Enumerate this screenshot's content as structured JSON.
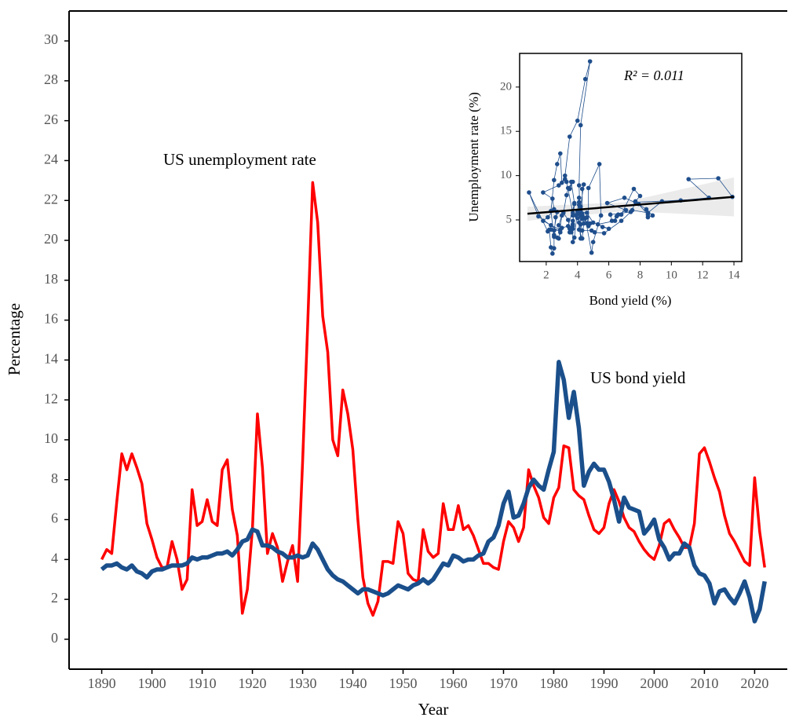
{
  "chart_data": [
    {
      "type": "line",
      "xlabel": "Year",
      "ylabel": "Percentage",
      "x": [
        1890,
        1891,
        1892,
        1893,
        1894,
        1895,
        1896,
        1897,
        1898,
        1899,
        1900,
        1901,
        1902,
        1903,
        1904,
        1905,
        1906,
        1907,
        1908,
        1909,
        1910,
        1911,
        1912,
        1913,
        1914,
        1915,
        1916,
        1917,
        1918,
        1919,
        1920,
        1921,
        1922,
        1923,
        1924,
        1925,
        1926,
        1927,
        1928,
        1929,
        1930,
        1931,
        1932,
        1933,
        1934,
        1935,
        1936,
        1937,
        1938,
        1939,
        1940,
        1941,
        1942,
        1943,
        1944,
        1945,
        1946,
        1947,
        1948,
        1949,
        1950,
        1951,
        1952,
        1953,
        1954,
        1955,
        1956,
        1957,
        1958,
        1959,
        1960,
        1961,
        1962,
        1963,
        1964,
        1965,
        1966,
        1967,
        1968,
        1969,
        1970,
        1971,
        1972,
        1973,
        1974,
        1975,
        1976,
        1977,
        1978,
        1979,
        1980,
        1981,
        1982,
        1983,
        1984,
        1985,
        1986,
        1987,
        1988,
        1989,
        1990,
        1991,
        1992,
        1993,
        1994,
        1995,
        1996,
        1997,
        1998,
        1999,
        2000,
        2001,
        2002,
        2003,
        2004,
        2005,
        2006,
        2007,
        2008,
        2009,
        2010,
        2011,
        2012,
        2013,
        2014,
        2015,
        2016,
        2017,
        2018,
        2019,
        2020,
        2021,
        2022
      ],
      "series": [
        {
          "name": "US unemployment rate",
          "color": "#ff0000",
          "values": [
            4.0,
            4.5,
            4.3,
            6.9,
            9.3,
            8.5,
            9.3,
            8.6,
            7.8,
            5.8,
            5.0,
            4.1,
            3.6,
            3.6,
            4.9,
            4.0,
            2.5,
            3.0,
            7.5,
            5.7,
            5.9,
            7.0,
            5.9,
            5.7,
            8.5,
            9.0,
            6.5,
            5.2,
            1.3,
            2.5,
            5.5,
            11.3,
            8.6,
            4.3,
            5.3,
            4.6,
            2.9,
            3.9,
            4.7,
            2.9,
            8.9,
            15.7,
            22.9,
            20.9,
            16.2,
            14.4,
            10.0,
            9.2,
            12.5,
            11.3,
            9.5,
            6.0,
            3.1,
            1.8,
            1.2,
            1.9,
            3.9,
            3.9,
            3.8,
            5.9,
            5.3,
            3.3,
            3.0,
            2.9,
            5.5,
            4.4,
            4.1,
            4.3,
            6.8,
            5.5,
            5.5,
            6.7,
            5.5,
            5.7,
            5.2,
            4.5,
            3.8,
            3.8,
            3.6,
            3.5,
            4.9,
            5.9,
            5.6,
            4.9,
            5.6,
            8.5,
            7.7,
            7.1,
            6.1,
            5.8,
            7.1,
            7.6,
            9.7,
            9.6,
            7.5,
            7.2,
            7.0,
            6.2,
            5.5,
            5.3,
            5.6,
            6.8,
            7.5,
            6.9,
            6.1,
            5.6,
            5.4,
            4.9,
            4.5,
            4.2,
            4.0,
            4.7,
            5.8,
            6.0,
            5.5,
            5.1,
            4.6,
            4.6,
            5.8,
            9.3,
            9.6,
            8.9,
            8.1,
            7.4,
            6.2,
            5.3,
            4.9,
            4.4,
            3.9,
            3.7,
            8.1,
            5.4,
            3.6
          ]
        },
        {
          "name": "US bond yield",
          "color": "#1a4f8b",
          "values": [
            3.5,
            3.7,
            3.7,
            3.8,
            3.6,
            3.5,
            3.7,
            3.4,
            3.3,
            3.1,
            3.4,
            3.5,
            3.5,
            3.6,
            3.7,
            3.7,
            3.7,
            3.8,
            4.1,
            4.0,
            4.1,
            4.1,
            4.2,
            4.3,
            4.3,
            4.4,
            4.2,
            4.5,
            4.9,
            5.0,
            5.5,
            5.4,
            4.7,
            4.7,
            4.6,
            4.4,
            4.3,
            4.1,
            4.1,
            4.2,
            4.1,
            4.2,
            4.8,
            4.5,
            4.0,
            3.5,
            3.2,
            3.0,
            2.9,
            2.7,
            2.5,
            2.3,
            2.5,
            2.5,
            2.4,
            2.3,
            2.2,
            2.3,
            2.5,
            2.7,
            2.6,
            2.5,
            2.7,
            2.8,
            3.0,
            2.8,
            3.0,
            3.4,
            3.8,
            3.7,
            4.2,
            4.1,
            3.9,
            4.0,
            4.0,
            4.2,
            4.3,
            4.9,
            5.1,
            5.7,
            6.8,
            7.4,
            6.1,
            6.2,
            6.8,
            7.6,
            8.0,
            7.7,
            7.5,
            8.5,
            9.4,
            13.9,
            13.0,
            11.1,
            12.4,
            10.6,
            7.7,
            8.4,
            8.8,
            8.5,
            8.5,
            7.9,
            7.0,
            5.9,
            7.1,
            6.6,
            6.5,
            6.4,
            5.3,
            5.6,
            6.0,
            5.0,
            4.6,
            4.0,
            4.3,
            4.3,
            4.8,
            4.6,
            3.7,
            3.3,
            3.2,
            2.8,
            1.8,
            2.4,
            2.5,
            2.1,
            1.8,
            2.3,
            2.9,
            2.1,
            0.9,
            1.5,
            2.9
          ]
        }
      ],
      "xlim": [
        1883.5,
        2026.5
      ],
      "ylim": [
        -1.5,
        31.5
      ],
      "xticks": [
        1890,
        1900,
        1910,
        1920,
        1930,
        1940,
        1950,
        1960,
        1970,
        1980,
        1990,
        2000,
        2010,
        2020
      ],
      "yticks": [
        0,
        2,
        4,
        6,
        8,
        10,
        12,
        14,
        16,
        18,
        20,
        22,
        24,
        26,
        28,
        30
      ]
    },
    {
      "type": "scatter",
      "xlabel": "Bond yield (%)",
      "ylabel": "Unemployment rate (%)",
      "annotation": "R² = 0.011",
      "color": "#1f4e8c",
      "connect": true,
      "xlim": [
        0.3,
        14.5
      ],
      "ylim": [
        0.3,
        23.8
      ],
      "xticks": [
        2,
        4,
        6,
        8,
        10,
        12,
        14
      ],
      "yticks": [
        5,
        10,
        15,
        20
      ],
      "trend_line": {
        "x": [
          0.8,
          14
        ],
        "y": [
          5.7,
          7.6
        ]
      },
      "trend_band": {
        "x": [
          0.8,
          7,
          14
        ],
        "lower": [
          4.9,
          6.0,
          5.4
        ],
        "upper": [
          6.5,
          7.0,
          9.8
        ]
      }
    }
  ]
}
